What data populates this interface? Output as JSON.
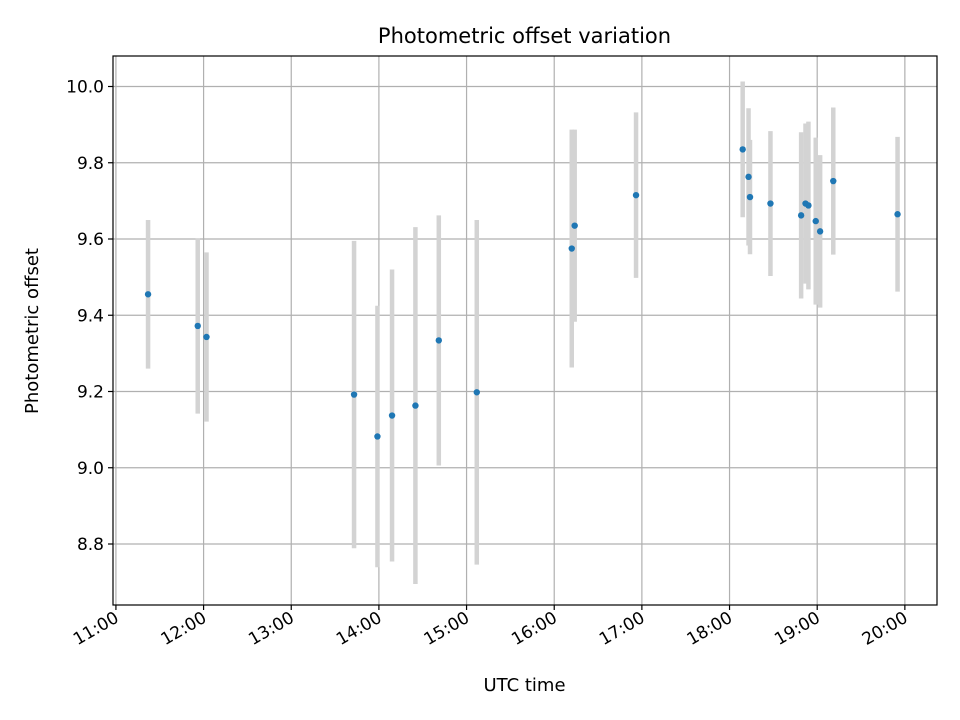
{
  "chart_data": {
    "type": "scatter",
    "title": "Photometric offset variation",
    "xlabel": "UTC time",
    "ylabel": "Photometric offset",
    "x_unit": "UTC time of day (HH:MM)",
    "xlim": [
      "10:58",
      "20:22"
    ],
    "ylim": [
      8.64,
      10.08
    ],
    "x_ticks": [
      "11:00",
      "12:00",
      "13:00",
      "14:00",
      "15:00",
      "16:00",
      "17:00",
      "18:00",
      "19:00",
      "20:00"
    ],
    "y_ticks": [
      8.8,
      9.0,
      9.2,
      9.4,
      9.6,
      9.8,
      10.0
    ],
    "y_tick_labels": [
      "8.8",
      "9.0",
      "9.2",
      "9.4",
      "9.6",
      "9.8",
      "10.0"
    ],
    "grid": true,
    "marker_color": "#1f77b4",
    "errorbar_color": "#d3d3d3",
    "series": [
      {
        "points": [
          {
            "x": "11:22",
            "y": 9.455,
            "err": 0.195
          },
          {
            "x": "11:56",
            "y": 9.372,
            "err": 0.23
          },
          {
            "x": "12:02",
            "y": 9.343,
            "err": 0.222
          },
          {
            "x": "13:43",
            "y": 9.192,
            "err": 0.403
          },
          {
            "x": "13:59",
            "y": 9.082,
            "err": 0.343
          },
          {
            "x": "14:09",
            "y": 9.137,
            "err": 0.383
          },
          {
            "x": "14:25",
            "y": 9.163,
            "err": 0.468
          },
          {
            "x": "14:41",
            "y": 9.334,
            "err": 0.328
          },
          {
            "x": "15:07",
            "y": 9.198,
            "err": 0.452
          },
          {
            "x": "16:12",
            "y": 9.575,
            "err": 0.312
          },
          {
            "x": "16:14",
            "y": 9.635,
            "err": 0.252
          },
          {
            "x": "16:56",
            "y": 9.715,
            "err": 0.217
          },
          {
            "x": "18:09",
            "y": 9.835,
            "err": 0.178
          },
          {
            "x": "18:13",
            "y": 9.763,
            "err": 0.18
          },
          {
            "x": "18:14",
            "y": 9.71,
            "err": 0.15
          },
          {
            "x": "18:28",
            "y": 9.693,
            "err": 0.19
          },
          {
            "x": "18:49",
            "y": 9.662,
            "err": 0.218
          },
          {
            "x": "18:52",
            "y": 9.693,
            "err": 0.21
          },
          {
            "x": "18:54",
            "y": 9.688,
            "err": 0.22
          },
          {
            "x": "18:59",
            "y": 9.647,
            "err": 0.219
          },
          {
            "x": "19:02",
            "y": 9.62,
            "err": 0.2
          },
          {
            "x": "19:11",
            "y": 9.752,
            "err": 0.193
          },
          {
            "x": "19:55",
            "y": 9.665,
            "err": 0.203
          }
        ]
      }
    ]
  }
}
